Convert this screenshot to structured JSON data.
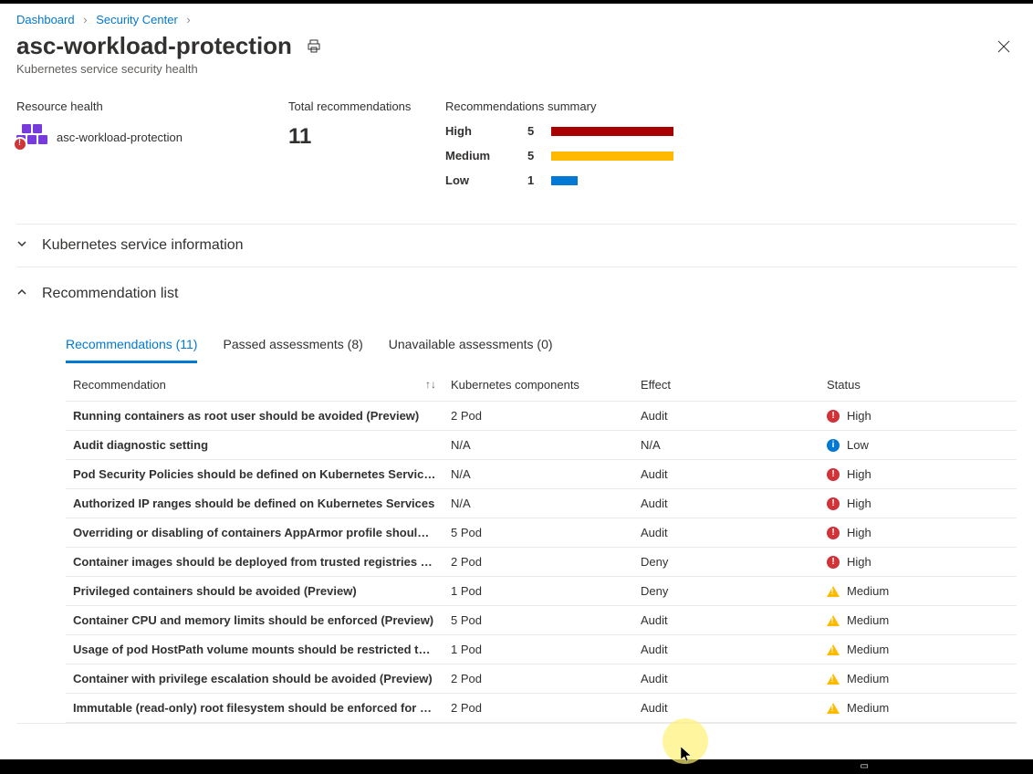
{
  "breadcrumb": {
    "dashboard": "Dashboard",
    "security_center": "Security Center"
  },
  "title": "asc-workload-protection",
  "subtitle": "Kubernetes service security health",
  "resource_health": {
    "heading": "Resource health",
    "name": "asc-workload-protection"
  },
  "total_recs": {
    "heading": "Total recommendations",
    "count": "11"
  },
  "summary": {
    "heading": "Recommendations summary",
    "high_label": "High",
    "high_count": "5",
    "medium_label": "Medium",
    "medium_count": "5",
    "low_label": "Low",
    "low_count": "1"
  },
  "sections": {
    "k8s_info": "Kubernetes service information",
    "rec_list": "Recommendation list"
  },
  "tabs": {
    "recs": "Recommendations (11)",
    "passed": "Passed assessments (8)",
    "unavailable": "Unavailable assessments (0)"
  },
  "columns": {
    "rec": "Recommendation",
    "comp": "Kubernetes components",
    "effect": "Effect",
    "status": "Status"
  },
  "rows": [
    {
      "rec": "Running containers as root user should be avoided (Preview)",
      "comp": "2 Pod",
      "effect": "Audit",
      "status": "High",
      "sev": "high"
    },
    {
      "rec": "Audit diagnostic setting",
      "comp": "N/A",
      "effect": "N/A",
      "status": "Low",
      "sev": "low"
    },
    {
      "rec": "Pod Security Policies should be defined on Kubernetes Services (Preview)",
      "comp": "N/A",
      "effect": "Audit",
      "status": "High",
      "sev": "high"
    },
    {
      "rec": "Authorized IP ranges should be defined on Kubernetes Services",
      "comp": "N/A",
      "effect": "Audit",
      "status": "High",
      "sev": "high"
    },
    {
      "rec": "Overriding or disabling of containers AppArmor profile should be restricted (Preview)",
      "comp": "5 Pod",
      "effect": "Audit",
      "status": "High",
      "sev": "high"
    },
    {
      "rec": "Container images should be deployed from trusted registries only (Preview)",
      "comp": "2 Pod",
      "effect": "Deny",
      "status": "High",
      "sev": "high"
    },
    {
      "rec": "Privileged containers should be avoided (Preview)",
      "comp": "1 Pod",
      "effect": "Deny",
      "status": "Medium",
      "sev": "med"
    },
    {
      "rec": "Container CPU and memory limits should be enforced (Preview)",
      "comp": "5 Pod",
      "effect": "Audit",
      "status": "Medium",
      "sev": "med"
    },
    {
      "rec": "Usage of pod HostPath volume mounts should be restricted to a known list (Preview)",
      "comp": "1 Pod",
      "effect": "Audit",
      "status": "Medium",
      "sev": "med"
    },
    {
      "rec": "Container with privilege escalation should be avoided (Preview)",
      "comp": "2 Pod",
      "effect": "Audit",
      "status": "Medium",
      "sev": "med"
    },
    {
      "rec": "Immutable (read-only) root filesystem should be enforced for containers (Preview)",
      "comp": "2 Pod",
      "effect": "Audit",
      "status": "Medium",
      "sev": "med"
    }
  ],
  "colors": {
    "high": "#a80000",
    "medium": "#ffb900",
    "low": "#0078d4",
    "link": "#0078d4"
  }
}
